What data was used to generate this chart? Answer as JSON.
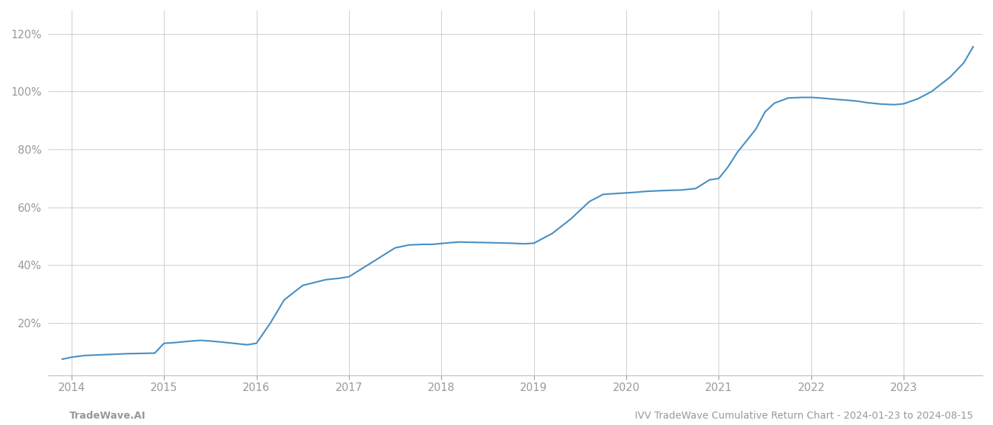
{
  "title": "IVV TradeWave Cumulative Return Chart - 2024-01-23 to 2024-08-15",
  "left_label": "TradeWave.AI",
  "line_color": "#4a90c4",
  "background_color": "#ffffff",
  "grid_color": "#cccccc",
  "x_values": [
    2013.9,
    2014.0,
    2014.15,
    2014.3,
    2014.45,
    2014.6,
    2014.75,
    2014.9,
    2015.0,
    2015.1,
    2015.2,
    2015.3,
    2015.4,
    2015.5,
    2015.6,
    2015.75,
    2015.9,
    2016.0,
    2016.15,
    2016.3,
    2016.5,
    2016.75,
    2016.9,
    2017.0,
    2017.15,
    2017.3,
    2017.5,
    2017.65,
    2017.8,
    2017.9,
    2018.0,
    2018.1,
    2018.2,
    2018.5,
    2018.75,
    2018.9,
    2019.0,
    2019.2,
    2019.4,
    2019.6,
    2019.75,
    2019.9,
    2020.0,
    2020.1,
    2020.2,
    2020.4,
    2020.6,
    2020.75,
    2020.9,
    2021.0,
    2021.1,
    2021.2,
    2021.4,
    2021.5,
    2021.6,
    2021.75,
    2021.9,
    2022.0,
    2022.1,
    2022.2,
    2022.4,
    2022.5,
    2022.6,
    2022.75,
    2022.9,
    2023.0,
    2023.15,
    2023.3,
    2023.5,
    2023.65,
    2023.75
  ],
  "y_values": [
    0.075,
    0.082,
    0.088,
    0.09,
    0.092,
    0.094,
    0.095,
    0.096,
    0.13,
    0.132,
    0.135,
    0.138,
    0.14,
    0.138,
    0.135,
    0.13,
    0.125,
    0.13,
    0.2,
    0.28,
    0.33,
    0.35,
    0.355,
    0.36,
    0.39,
    0.42,
    0.46,
    0.47,
    0.472,
    0.472,
    0.475,
    0.478,
    0.48,
    0.478,
    0.476,
    0.474,
    0.476,
    0.51,
    0.56,
    0.62,
    0.645,
    0.648,
    0.65,
    0.652,
    0.655,
    0.658,
    0.66,
    0.665,
    0.695,
    0.7,
    0.74,
    0.79,
    0.87,
    0.93,
    0.96,
    0.978,
    0.98,
    0.98,
    0.978,
    0.975,
    0.97,
    0.967,
    0.962,
    0.957,
    0.955,
    0.958,
    0.975,
    1.0,
    1.05,
    1.1,
    1.155
  ],
  "yticks": [
    0.2,
    0.4,
    0.6,
    0.8,
    1.0,
    1.2
  ],
  "ytick_labels": [
    "20%",
    "40%",
    "60%",
    "80%",
    "100%",
    "120%"
  ],
  "xticks": [
    2014,
    2015,
    2016,
    2017,
    2018,
    2019,
    2020,
    2021,
    2022,
    2023
  ],
  "xlim": [
    2013.75,
    2023.85
  ],
  "ylim": [
    0.02,
    1.28
  ],
  "tick_color": "#999999",
  "label_fontsize": 11,
  "footer_fontsize": 10,
  "line_width": 1.6
}
